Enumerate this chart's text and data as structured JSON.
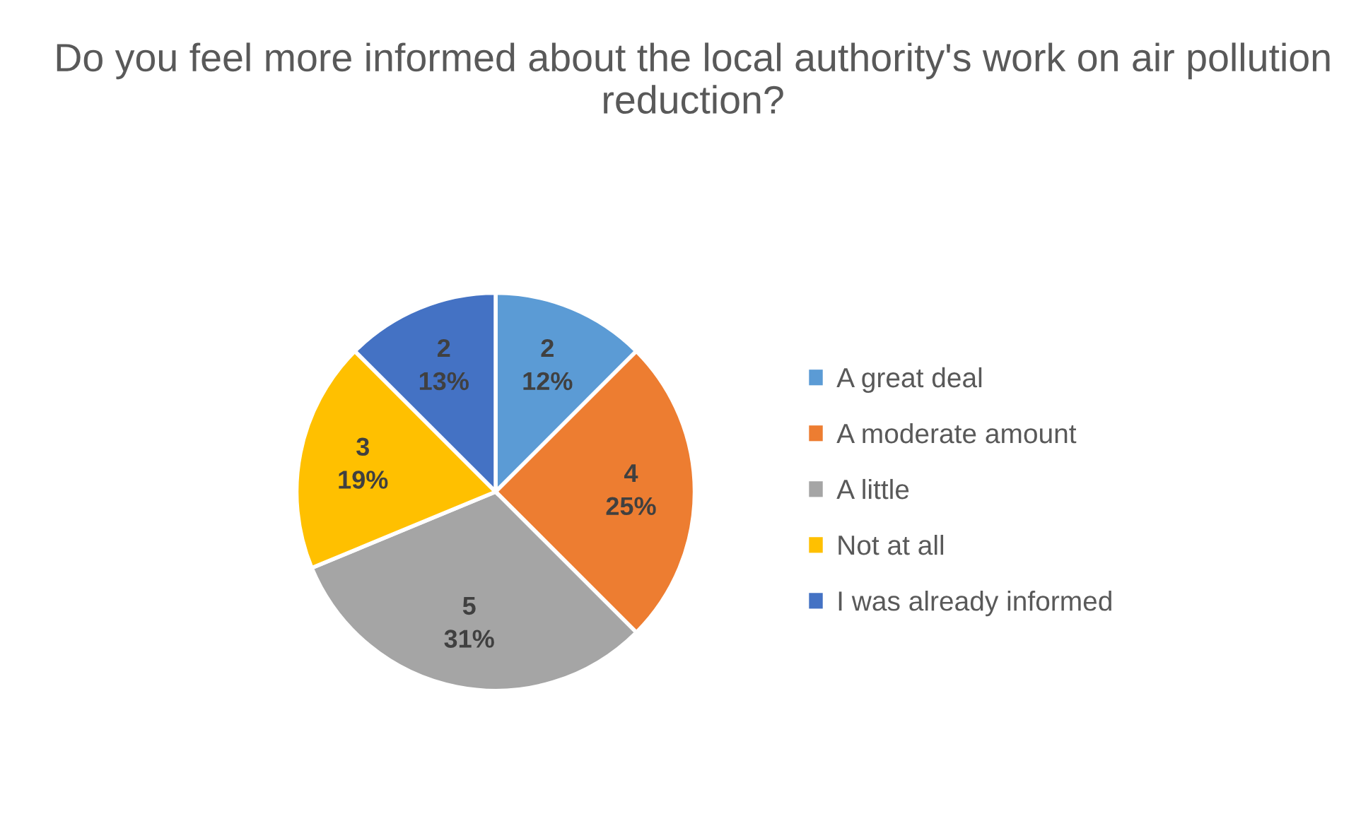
{
  "chart_data": {
    "type": "pie",
    "title": "Do you feel more informed about the local authority's work on air pollution reduction?",
    "categories": [
      "A great deal",
      "A moderate amount",
      "A little",
      "Not at all",
      "I was already informed"
    ],
    "values": [
      2,
      4,
      5,
      3,
      2
    ],
    "colors": [
      "#5b9bd5",
      "#ed7d31",
      "#a5a5a5",
      "#ffc000",
      "#4472c4"
    ],
    "value_labels": [
      "2\n12%",
      "4\n25%",
      "5\n31%",
      "3\n19%",
      "2\n13%"
    ],
    "legend": "right"
  }
}
